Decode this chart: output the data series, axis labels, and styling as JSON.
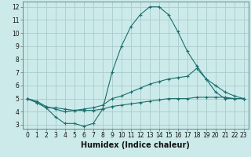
{
  "xlabel": "Humidex (Indice chaleur)",
  "background_color": "#cceaea",
  "grid_color": "#aacccc",
  "line_color": "#1a6e6e",
  "xlim": [
    -0.5,
    23.5
  ],
  "ylim": [
    2.7,
    12.4
  ],
  "xticks": [
    0,
    1,
    2,
    3,
    4,
    5,
    6,
    7,
    8,
    9,
    10,
    11,
    12,
    13,
    14,
    15,
    16,
    17,
    18,
    19,
    20,
    21,
    22,
    23
  ],
  "yticks": [
    3,
    4,
    5,
    6,
    7,
    8,
    9,
    10,
    11,
    12
  ],
  "line1_x": [
    0,
    1,
    2,
    3,
    4,
    5,
    6,
    7,
    8,
    9,
    10,
    11,
    12,
    13,
    14,
    15,
    16,
    17,
    18,
    19,
    20,
    21,
    22,
    23
  ],
  "line1_y": [
    5.0,
    4.7,
    4.3,
    3.6,
    3.1,
    3.1,
    2.9,
    3.1,
    4.2,
    7.0,
    9.0,
    10.5,
    11.4,
    12.0,
    12.0,
    11.4,
    10.1,
    8.6,
    7.5,
    6.5,
    5.5,
    5.0,
    5.0,
    5.0
  ],
  "line2_x": [
    0,
    1,
    2,
    3,
    4,
    5,
    6,
    7,
    8,
    9,
    10,
    11,
    12,
    13,
    14,
    15,
    16,
    17,
    18,
    19,
    20,
    21,
    22,
    23
  ],
  "line2_y": [
    5.0,
    4.8,
    4.4,
    4.2,
    4.0,
    4.1,
    4.2,
    4.3,
    4.5,
    5.0,
    5.2,
    5.5,
    5.8,
    6.1,
    6.3,
    6.5,
    6.6,
    6.7,
    7.3,
    6.5,
    6.0,
    5.5,
    5.2,
    5.0
  ],
  "line3_x": [
    0,
    1,
    2,
    3,
    4,
    5,
    6,
    7,
    8,
    9,
    10,
    11,
    12,
    13,
    14,
    15,
    16,
    17,
    18,
    19,
    20,
    21,
    22,
    23
  ],
  "line3_y": [
    5.0,
    4.7,
    4.3,
    4.3,
    4.2,
    4.1,
    4.1,
    4.1,
    4.2,
    4.4,
    4.5,
    4.6,
    4.7,
    4.8,
    4.9,
    5.0,
    5.0,
    5.0,
    5.1,
    5.1,
    5.1,
    5.1,
    5.0,
    5.0
  ],
  "markersize": 3,
  "linewidth": 0.8,
  "tick_fontsize": 5.5,
  "xlabel_fontsize": 7.0
}
